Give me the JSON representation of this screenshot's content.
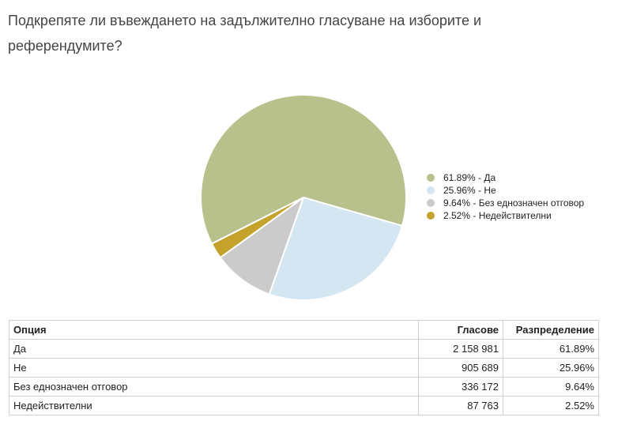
{
  "question": "Подкрепяте ли въвеждането на задължително гласуване на изборите и референдумите?",
  "chart_data": {
    "type": "pie",
    "slices": [
      {
        "label": "Да",
        "value": 61.89,
        "color": "#b8c08c"
      },
      {
        "label": "Не",
        "value": 25.96,
        "color": "#d5e6f3"
      },
      {
        "label": "Без еднозначен отговор",
        "value": 9.64,
        "color": "#cbcbcb"
      },
      {
        "label": "Недействителни",
        "value": 2.52,
        "color": "#c4a22c"
      }
    ],
    "legend": [
      "61.89% - Да",
      "25.96% - Не",
      "9.64% - Без еднозначен отговор",
      "2.52% - Недействителни"
    ],
    "legend_position": "right"
  },
  "table": {
    "headers": [
      "Опция",
      "Гласове",
      "Разпределение"
    ],
    "rows": [
      {
        "option": "Да",
        "votes": "2 158 981",
        "dist": "61.89%"
      },
      {
        "option": "Не",
        "votes": "905 689",
        "dist": "25.96%"
      },
      {
        "option": "Без еднозначен отговор",
        "votes": "336 172",
        "dist": "9.64%"
      },
      {
        "option": "Недействителни",
        "votes": "87 763",
        "dist": "2.52%"
      }
    ]
  }
}
